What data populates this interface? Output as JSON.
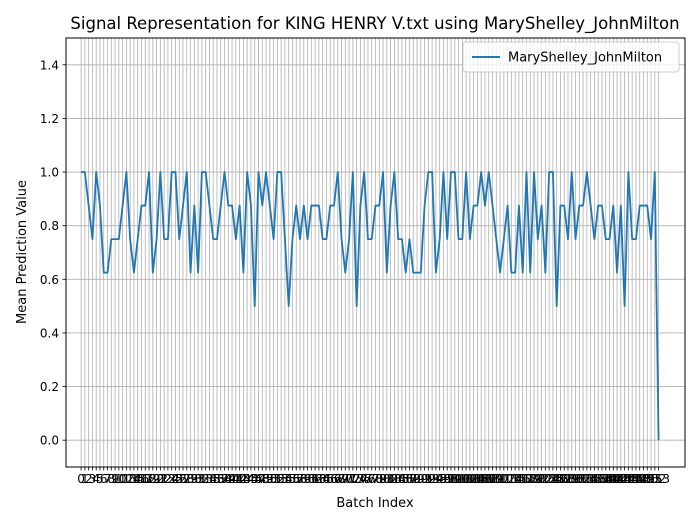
{
  "chart_data": {
    "type": "line",
    "title": "Signal Representation for KING HENRY V.txt using MaryShelley_JohnMilton",
    "xlabel": "Batch Index",
    "ylabel": "Mean Prediction Value",
    "ylim": [
      -0.1,
      1.5
    ],
    "xlim": [
      -4,
      160
    ],
    "yticks": [
      "0.0",
      "0.2",
      "0.4",
      "0.6",
      "0.8",
      "1.0",
      "1.2",
      "1.4"
    ],
    "ytick_values": [
      0.0,
      0.2,
      0.4,
      0.6,
      0.8,
      1.0,
      1.2,
      1.4
    ],
    "grid": true,
    "legend_position": "top-right",
    "line_color": "#1f77b4",
    "series": [
      {
        "name": "MaryShelley_JohnMilton",
        "values": [
          1.0,
          1.0,
          0.875,
          0.75,
          1.0,
          0.875,
          0.625,
          0.625,
          0.75,
          0.75,
          0.75,
          0.875,
          1.0,
          0.75,
          0.625,
          0.75,
          0.875,
          0.875,
          1.0,
          0.625,
          0.75,
          1.0,
          0.75,
          0.75,
          1.0,
          1.0,
          0.75,
          0.875,
          1.0,
          0.625,
          0.875,
          0.625,
          1.0,
          1.0,
          0.875,
          0.75,
          0.75,
          0.875,
          1.0,
          0.875,
          0.875,
          0.75,
          0.875,
          0.625,
          1.0,
          0.875,
          0.5,
          1.0,
          0.875,
          1.0,
          0.875,
          0.75,
          1.0,
          1.0,
          0.75,
          0.5,
          0.75,
          0.875,
          0.75,
          0.875,
          0.75,
          0.875,
          0.875,
          0.875,
          0.75,
          0.75,
          0.875,
          0.875,
          1.0,
          0.75,
          0.625,
          0.75,
          1.0,
          0.5,
          0.875,
          1.0,
          0.75,
          0.75,
          0.875,
          0.875,
          1.0,
          0.625,
          0.875,
          1.0,
          0.75,
          0.75,
          0.625,
          0.75,
          0.625,
          0.625,
          0.625,
          0.875,
          1.0,
          1.0,
          0.625,
          0.75,
          1.0,
          0.75,
          1.0,
          1.0,
          0.75,
          0.75,
          1.0,
          0.75,
          0.875,
          0.875,
          1.0,
          0.875,
          1.0,
          0.875,
          0.75,
          0.625,
          0.75,
          0.875,
          0.625,
          0.625,
          0.875,
          0.625,
          1.0,
          0.625,
          1.0,
          0.75,
          0.875,
          0.625,
          1.0,
          1.0,
          0.5,
          0.875,
          0.875,
          0.75,
          1.0,
          0.75,
          0.875,
          0.875,
          1.0,
          0.875,
          0.75,
          0.875,
          0.875,
          0.75,
          0.75,
          0.875,
          0.625,
          0.875,
          0.5,
          1.0,
          0.75,
          0.75,
          0.875,
          0.875,
          0.875,
          0.75,
          1.0,
          0.0
        ]
      }
    ]
  }
}
